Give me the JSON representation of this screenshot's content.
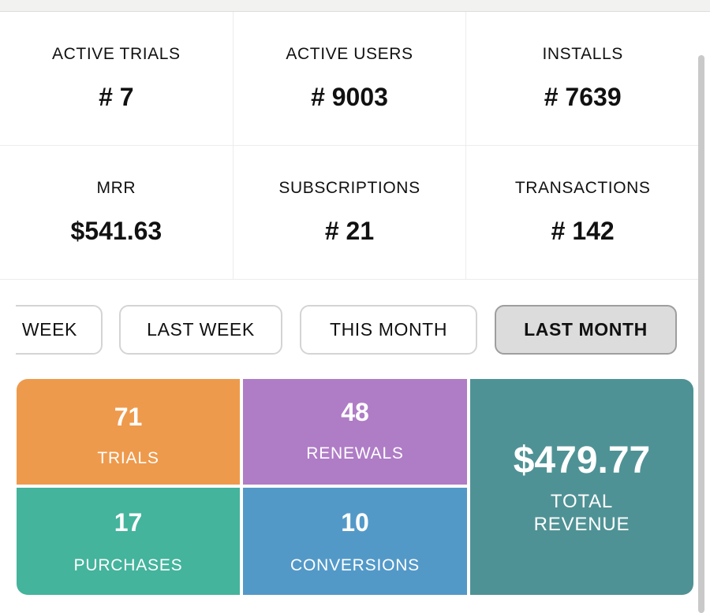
{
  "stats": [
    {
      "label": "ACTIVE TRIALS",
      "value": "# 7"
    },
    {
      "label": "ACTIVE USERS",
      "value": "# 9003"
    },
    {
      "label": "INSTALLS",
      "value": "# 7639"
    },
    {
      "label": "MRR",
      "value": "$541.63"
    },
    {
      "label": "SUBSCRIPTIONS",
      "value": "# 21"
    },
    {
      "label": "TRANSACTIONS",
      "value": "# 142"
    }
  ],
  "filters": {
    "items": [
      "WEEK",
      "LAST WEEK",
      "THIS MONTH",
      "LAST MONTH"
    ],
    "selected": "LAST MONTH"
  },
  "tiles": {
    "trials": {
      "value": "71",
      "label": "TRIALS"
    },
    "renewals": {
      "value": "48",
      "label": "RENEWALS"
    },
    "purchases": {
      "value": "17",
      "label": "PURCHASES"
    },
    "conversions": {
      "value": "10",
      "label": "CONVERSIONS"
    },
    "revenue": {
      "value": "$479.77",
      "label_line1": "TOTAL",
      "label_line2": "REVENUE"
    }
  },
  "colors": {
    "trials": "#ee9a4c",
    "renewals": "#af7cc6",
    "purchases": "#44b49c",
    "conversions": "#5399c8",
    "revenue": "#4f9295",
    "selected_filter": "#dcdcdc"
  }
}
